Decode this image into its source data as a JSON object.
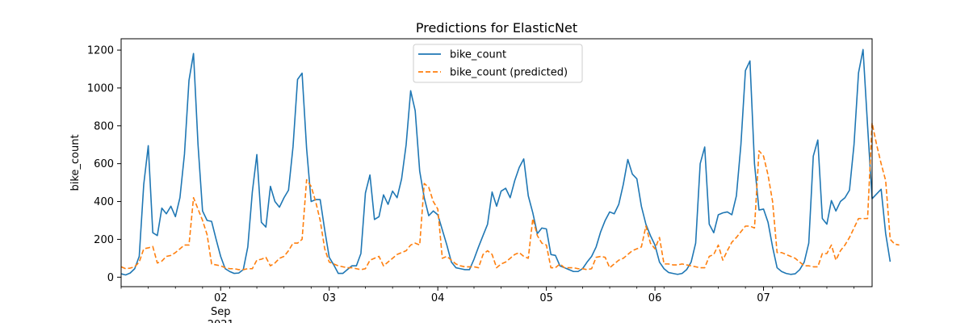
{
  "chart_data": {
    "type": "line",
    "title": "Predictions for ElasticNet",
    "xlabel": "",
    "ylabel": "bike_count",
    "xlim": [
      0,
      166
    ],
    "ylim": [
      -50,
      1260
    ],
    "yticks": [
      0,
      200,
      400,
      600,
      800,
      1000,
      1200
    ],
    "xticks": [
      {
        "x": 22,
        "label": "02",
        "sublabel": "Sep",
        "sublabel2": "2021"
      },
      {
        "x": 46,
        "label": "03"
      },
      {
        "x": 70,
        "label": "04"
      },
      {
        "x": 94,
        "label": "05"
      },
      {
        "x": 118,
        "label": "06"
      },
      {
        "x": 142,
        "label": "07"
      }
    ],
    "legend_position": "top-center",
    "grid": false,
    "series": [
      {
        "name": "bike_count",
        "color": "#1f77b4",
        "dash": "solid",
        "values": [
          18,
          12,
          22,
          45,
          110,
          490,
          695,
          235,
          220,
          365,
          335,
          375,
          320,
          420,
          650,
          1040,
          1182,
          700,
          350,
          300,
          295,
          200,
          110,
          45,
          30,
          20,
          22,
          40,
          160,
          450,
          648,
          290,
          265,
          480,
          400,
          370,
          420,
          460,
          690,
          1045,
          1078,
          680,
          400,
          410,
          410,
          250,
          105,
          65,
          20,
          20,
          40,
          60,
          60,
          125,
          445,
          540,
          305,
          320,
          435,
          385,
          455,
          420,
          520,
          700,
          985,
          880,
          560,
          420,
          325,
          350,
          330,
          250,
          170,
          80,
          50,
          45,
          40,
          40,
          95,
          160,
          220,
          280,
          450,
          375,
          455,
          470,
          420,
          510,
          580,
          625,
          430,
          340,
          230,
          260,
          255,
          120,
          115,
          60,
          50,
          40,
          30,
          30,
          45,
          80,
          110,
          160,
          240,
          300,
          345,
          335,
          385,
          490,
          622,
          545,
          520,
          375,
          280,
          220,
          170,
          80,
          45,
          25,
          20,
          15,
          20,
          40,
          80,
          180,
          600,
          688,
          280,
          235,
          330,
          340,
          345,
          330,
          430,
          700,
          1092,
          1143,
          600,
          355,
          360,
          290,
          160,
          50,
          30,
          20,
          15,
          18,
          40,
          80,
          180,
          640,
          725,
          310,
          280,
          405,
          350,
          400,
          420,
          460,
          700,
          1080,
          1203,
          800,
          415,
          440,
          465,
          230,
          82
        ]
      },
      {
        "name": "bike_count (predicted)",
        "color": "#ff7f0e",
        "dash": "dashed",
        "values": [
          55,
          45,
          48,
          55,
          80,
          150,
          155,
          162,
          75,
          85,
          110,
          115,
          130,
          150,
          170,
          170,
          420,
          360,
          300,
          225,
          70,
          65,
          60,
          50,
          45,
          45,
          40,
          40,
          45,
          45,
          90,
          95,
          105,
          60,
          75,
          100,
          110,
          140,
          180,
          180,
          200,
          515,
          480,
          400,
          300,
          150,
          80,
          70,
          60,
          55,
          50,
          50,
          45,
          40,
          45,
          90,
          100,
          110,
          60,
          80,
          100,
          120,
          130,
          140,
          170,
          180,
          170,
          495,
          475,
          400,
          360,
          100,
          110,
          90,
          70,
          60,
          55,
          55,
          55,
          50,
          120,
          140,
          120,
          50,
          70,
          80,
          100,
          120,
          130,
          110,
          100,
          310,
          220,
          180,
          170,
          50,
          50,
          70,
          50,
          50,
          50,
          45,
          45,
          40,
          45,
          105,
          110,
          105,
          50,
          70,
          90,
          100,
          120,
          140,
          150,
          160,
          270,
          180,
          150,
          210,
          70,
          70,
          65,
          65,
          70,
          65,
          60,
          55,
          50,
          50,
          110,
          120,
          170,
          90,
          140,
          185,
          210,
          240,
          270,
          270,
          260,
          668,
          640,
          540,
          400,
          130,
          130,
          120,
          110,
          100,
          80,
          60,
          60,
          55,
          55,
          125,
          125,
          170,
          90,
          140,
          170,
          210,
          260,
          310,
          310,
          310,
          815,
          700,
          600,
          510,
          200,
          175,
          170
        ]
      }
    ]
  }
}
